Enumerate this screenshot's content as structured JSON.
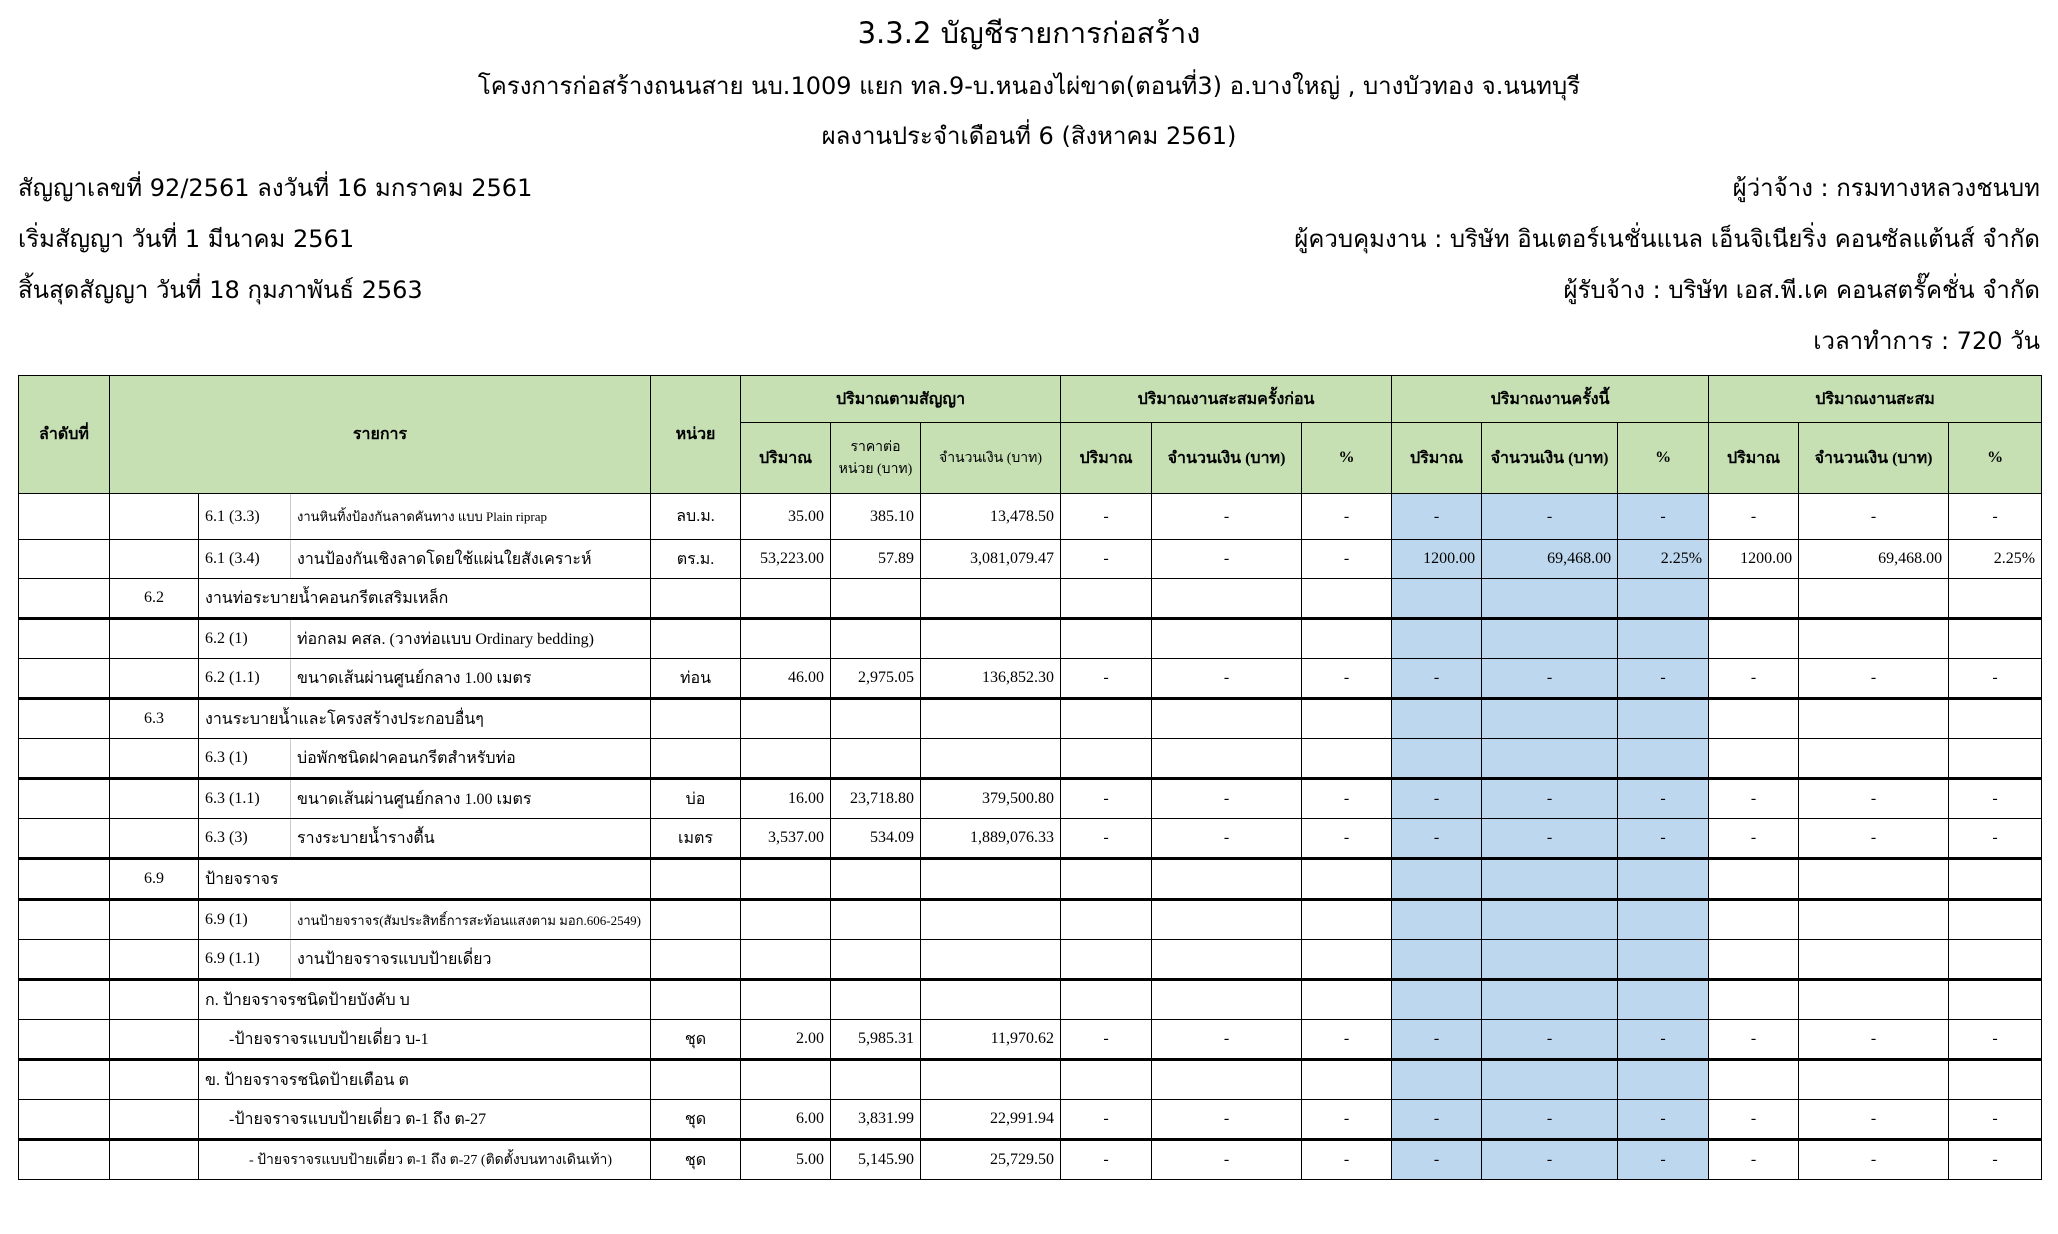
{
  "header": {
    "title": "3.3.2 บัญชีรายการก่อสร้าง",
    "project": "โครงการก่อสร้างถนนสาย นบ.1009 แยก ทล.9-บ.หนองไผ่ขาด(ตอนที่3) อ.บางใหญ่ , บางบัวทอง จ.นนทบุรี",
    "period": "ผลงานประจำเดือนที่ 6 (สิงหาคม 2561)"
  },
  "info": {
    "contract_no": "สัญญาเลขที่ 92/2561 ลงวันที่ 16 มกราคม 2561",
    "start": "เริ่มสัญญา  วันที่ 1 มีนาคม 2561",
    "end": "สิ้นสุดสัญญา  วันที่ 18 กุมภาพันธ์ 2563",
    "employer": "ผู้ว่าจ้าง : กรมทางหลวงชนบท",
    "supervisor": "ผู้ควบคุมงาน : บริษัท อินเตอร์เนชั่นแนล เอ็นจิเนียริ่ง คอนซัลแต้นส์ จำกัด",
    "contractor": "ผู้รับจ้าง : บริษัท เอส.พี.เค คอนสตรั๊คชั่น จำกัด",
    "duration": "เวลาทำการ : 720 วัน"
  },
  "colors": {
    "header_bg": "#c6e0b4",
    "current_bg": "#bdd7ee"
  },
  "table": {
    "headers": {
      "order": "ลำดับที่",
      "item": "รายการ",
      "unit": "หน่วย",
      "contract": "ปริมาณตามสัญญา",
      "previous": "ปริมาณงานสะสมครั้งก่อน",
      "current": "ปริมาณงานครั้งนี้",
      "cumulative": "ปริมาณงานสะสม",
      "qty": "ปริมาณ",
      "unit_price": "ราคาต่อ หน่วย (บาท)",
      "amount": "จำนวนเงิน (บาท)",
      "pct": "%"
    },
    "rows": [
      {
        "type": "item",
        "code": "6.1 (3.3)",
        "desc": "งานหินทิ้งป้องกันลาดคันทาง แบบ Plain riprap",
        "small": true,
        "unit": "ลบ.ม.",
        "qty": "35.00",
        "price": "385.10",
        "amount": "13,478.50",
        "prev": [
          "-",
          "-",
          "-"
        ],
        "curr": [
          "-",
          "-",
          "-"
        ],
        "cum": [
          "-",
          "-",
          "-"
        ]
      },
      {
        "type": "item",
        "code": "6.1 (3.4)",
        "desc": "งานป้องกันเชิงลาดโดยใช้แผ่นใยสังเคราะห์",
        "unit": "ตร.ม.",
        "qty": "53,223.00",
        "price": "57.89",
        "amount": "3,081,079.47",
        "prev": [
          "-",
          "-",
          "-"
        ],
        "curr": [
          "1200.00",
          "69,468.00",
          "2.25%"
        ],
        "cum": [
          "1200.00",
          "69,468.00",
          "2.25%"
        ]
      },
      {
        "type": "section",
        "code": "6.2",
        "desc": "งานท่อระบายน้ำคอนกรีตเสริมเหล็ก"
      },
      {
        "type": "item",
        "code": "6.2 (1)",
        "desc": "ท่อกลม คสล. (วางท่อแบบ Ordinary bedding)"
      },
      {
        "type": "item",
        "code": "6.2 (1.1)",
        "desc": "ขนาดเส้นผ่านศูนย์กลาง 1.00 เมตร",
        "unit": "ท่อน",
        "qty": "46.00",
        "price": "2,975.05",
        "amount": "136,852.30",
        "prev": [
          "-",
          "-",
          "-"
        ],
        "curr": [
          "-",
          "-",
          "-"
        ],
        "cum": [
          "-",
          "-",
          "-"
        ]
      },
      {
        "type": "section",
        "code": "6.3",
        "desc": "งานระบายน้ำและโครงสร้างประกอบอื่นๆ"
      },
      {
        "type": "item",
        "code": "6.3 (1)",
        "desc": "บ่อพักชนิดฝาคอนกรีตสำหรับท่อ"
      },
      {
        "type": "item",
        "code": "6.3 (1.1)",
        "desc": "ขนาดเส้นผ่านศูนย์กลาง 1.00 เมตร",
        "unit": "บ่อ",
        "qty": "16.00",
        "price": "23,718.80",
        "amount": "379,500.80",
        "prev": [
          "-",
          "-",
          "-"
        ],
        "curr": [
          "-",
          "-",
          "-"
        ],
        "cum": [
          "-",
          "-",
          "-"
        ]
      },
      {
        "type": "item",
        "code": "6.3 (3)",
        "desc": "รางระบายน้ำรางตื้น",
        "unit": "เมตร",
        "qty": "3,537.00",
        "price": "534.09",
        "amount": "1,889,076.33",
        "prev": [
          "-",
          "-",
          "-"
        ],
        "curr": [
          "-",
          "-",
          "-"
        ],
        "cum": [
          "-",
          "-",
          "-"
        ]
      },
      {
        "type": "section",
        "code": "6.9",
        "desc": "ป้ายจราจร"
      },
      {
        "type": "item",
        "code": "6.9 (1)",
        "desc": "งานป้ายจราจร(สัมประสิทธิ์การสะท้อนแสงตาม มอก.606-2549)",
        "small": true
      },
      {
        "type": "item",
        "code": "6.9 (1.1)",
        "desc": "งานป้ายจราจรแบบป้ายเดี่ยว"
      },
      {
        "type": "span",
        "desc": "ก. ป้ายจราจรชนิดป้ายบังคับ บ"
      },
      {
        "type": "span",
        "indent": 1,
        "desc": "-ป้ายจราจรแบบป้ายเดี่ยว บ-1",
        "unit": "ชุด",
        "qty": "2.00",
        "price": "5,985.31",
        "amount": "11,970.62",
        "prev": [
          "-",
          "-",
          "-"
        ],
        "curr": [
          "-",
          "-",
          "-"
        ],
        "cum": [
          "-",
          "-",
          "-"
        ]
      },
      {
        "type": "span",
        "desc": "ข. ป้ายจราจรชนิดป้ายเตือน ต"
      },
      {
        "type": "span",
        "indent": 1,
        "desc": "-ป้ายจราจรแบบป้ายเดี่ยว ต-1 ถึง ต-27",
        "unit": "ชุด",
        "qty": "6.00",
        "price": "3,831.99",
        "amount": "22,991.94",
        "prev": [
          "-",
          "-",
          "-"
        ],
        "curr": [
          "-",
          "-",
          "-"
        ],
        "cum": [
          "-",
          "-",
          "-"
        ]
      },
      {
        "type": "span",
        "indent": 2,
        "desc": "- ป้ายจราจรแบบป้ายเดี่ยว  ต-1 ถึง ต-27 (ติดตั้งบนทางเดินเท้า)",
        "unit": "ชุด",
        "qty": "5.00",
        "price": "5,145.90",
        "amount": "25,729.50",
        "prev": [
          "-",
          "-",
          "-"
        ],
        "curr": [
          "-",
          "-",
          "-"
        ],
        "cum": [
          "-",
          "-",
          "-"
        ]
      }
    ]
  }
}
